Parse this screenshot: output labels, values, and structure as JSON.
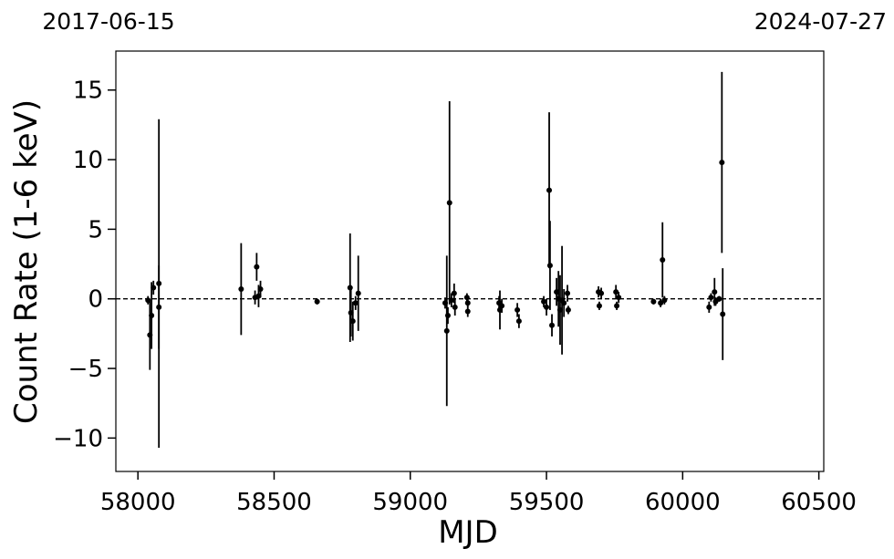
{
  "chart_data": {
    "type": "errorbar",
    "top_left_label": "2017-06-15",
    "top_right_label": "2024-07-27",
    "xlabel": "MJD",
    "ylabel": "Count Rate (1-6 keV)",
    "color": "#000000",
    "hline": 0,
    "xlim": [
      57919,
      60518
    ],
    "ylim": [
      -12.4,
      17.8
    ],
    "xticks": [
      58000,
      58500,
      59000,
      59500,
      60000,
      60500
    ],
    "yticks": [
      {
        "value": -10,
        "label": "−10"
      },
      {
        "value": -5,
        "label": "−5"
      },
      0,
      5,
      10,
      15
    ],
    "x": [
      58037,
      58044,
      58050,
      58057,
      58077,
      58077,
      58379,
      58430,
      58436,
      58443,
      58450,
      58658,
      58779,
      58782,
      58789,
      58799,
      58809,
      59128,
      59134,
      59138,
      59144,
      59151,
      59161,
      59164,
      59208,
      59211,
      59211,
      59326,
      59329,
      59336,
      59393,
      59399,
      59490,
      59500,
      59510,
      59513,
      59520,
      59537,
      59544,
      59550,
      59557,
      59564,
      59577,
      59580,
      59691,
      59694,
      59701,
      59755,
      59758,
      59765,
      59893,
      59919,
      59926,
      59933,
      60097,
      60104,
      60117,
      60121,
      60134,
      60144,
      60147
    ],
    "values": [
      -0.1,
      -2.6,
      -1.2,
      0.8,
      1.1,
      -0.6,
      0.7,
      0.1,
      2.3,
      0.2,
      0.7,
      -0.2,
      0.8,
      -1.0,
      -1.6,
      -0.3,
      0.4,
      -0.3,
      -2.3,
      -1.2,
      6.9,
      -0.1,
      0.4,
      -0.6,
      0.1,
      -0.9,
      -0.3,
      -0.3,
      -0.8,
      -0.5,
      -0.8,
      -1.6,
      -0.2,
      -0.6,
      7.8,
      2.4,
      -1.9,
      0.5,
      0.0,
      -0.8,
      -0.1,
      -0.3,
      0.4,
      -0.8,
      0.5,
      -0.5,
      0.4,
      0.5,
      -0.5,
      0.1,
      -0.2,
      -0.3,
      2.8,
      -0.1,
      -0.6,
      0.1,
      0.5,
      -0.2,
      0.0,
      9.8,
      -1.1
    ],
    "errors": [
      0.3,
      2.5,
      2.4,
      0.5,
      11.8,
      3.0,
      3.3,
      0.5,
      1.0,
      0.8,
      0.6,
      0.2,
      3.9,
      1.7,
      1.4,
      0.5,
      2.7,
      0.4,
      5.4,
      0.6,
      7.3,
      0.5,
      0.7,
      0.6,
      0.3,
      0.4,
      0.3,
      0.5,
      1.4,
      0.5,
      0.5,
      0.5,
      0.4,
      0.6,
      5.6,
      3.2,
      0.8,
      1.0,
      2.0,
      2.5,
      3.9,
      1.0,
      0.6,
      0.3,
      0.4,
      0.3,
      0.4,
      0.5,
      0.3,
      0.4,
      0.2,
      0.3,
      2.7,
      0.3,
      0.4,
      0.3,
      1.0,
      0.3,
      0.2,
      6.5,
      3.3
    ]
  }
}
